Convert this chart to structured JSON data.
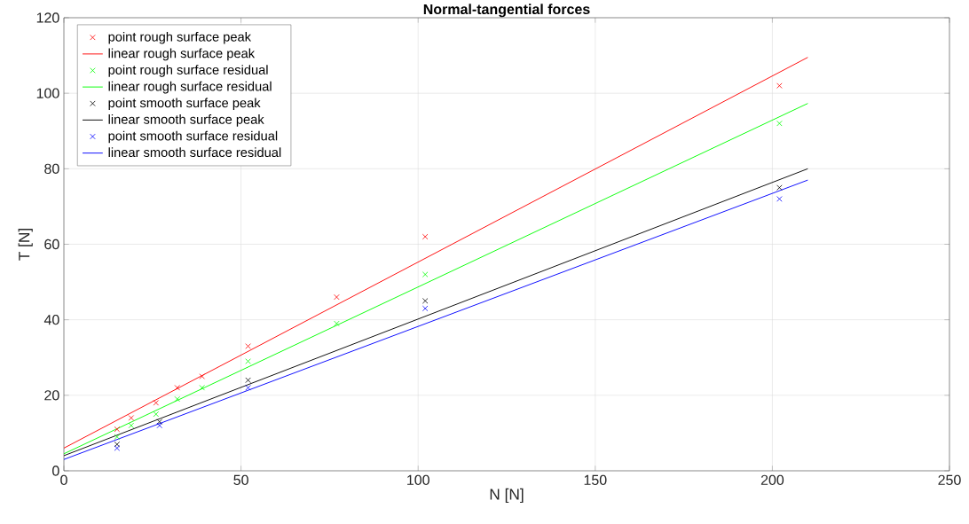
{
  "chart_data": {
    "type": "scatter",
    "title": "Normal-tangential forces",
    "xlabel": "N [N]",
    "ylabel": "T [N]",
    "xlim": [
      0,
      250
    ],
    "ylim": [
      0,
      120
    ],
    "xticks": [
      0,
      50,
      100,
      150,
      200,
      250
    ],
    "yticks": [
      0,
      20,
      40,
      60,
      80,
      100,
      120
    ],
    "grid": true,
    "legend": "top left",
    "series": [
      {
        "name": "point rough surface peak",
        "marker": "cross",
        "color": "#ff0000",
        "x": [
          15,
          19,
          26,
          32,
          39,
          52,
          77,
          102,
          202
        ],
        "values": [
          11,
          14,
          18,
          22,
          25,
          33,
          46,
          62,
          102
        ]
      },
      {
        "name": "linear rough surface peak",
        "type": "line",
        "marker": "none",
        "color": "#ff0000",
        "x": [
          0,
          210
        ],
        "values": [
          6,
          109.5
        ]
      },
      {
        "name": "point rough surface residual",
        "marker": "cross",
        "color": "#00ff00",
        "x": [
          15,
          19,
          26,
          32,
          39,
          52,
          77,
          102,
          202
        ],
        "values": [
          9,
          12,
          15,
          19,
          22,
          29,
          39,
          52,
          92
        ]
      },
      {
        "name": "linear rough surface residual",
        "type": "line",
        "marker": "none",
        "color": "#00ff00",
        "x": [
          0,
          210
        ],
        "values": [
          4.5,
          97.3
        ]
      },
      {
        "name": "point smooth surface peak",
        "marker": "cross",
        "color": "#000000",
        "x": [
          15,
          27,
          52,
          102,
          202
        ],
        "values": [
          7,
          13,
          24,
          45,
          75
        ]
      },
      {
        "name": "linear smooth surface peak",
        "type": "line",
        "marker": "none",
        "color": "#000000",
        "x": [
          0,
          210
        ],
        "values": [
          4,
          80
        ]
      },
      {
        "name": "point smooth surface residual",
        "marker": "cross",
        "color": "#0000ff",
        "x": [
          15,
          27,
          52,
          102,
          202
        ],
        "values": [
          6,
          12,
          22,
          43,
          72
        ]
      },
      {
        "name": "linear smooth surface residual",
        "type": "line",
        "marker": "none",
        "color": "#0000ff",
        "x": [
          0,
          210
        ],
        "values": [
          3,
          77
        ]
      }
    ]
  }
}
